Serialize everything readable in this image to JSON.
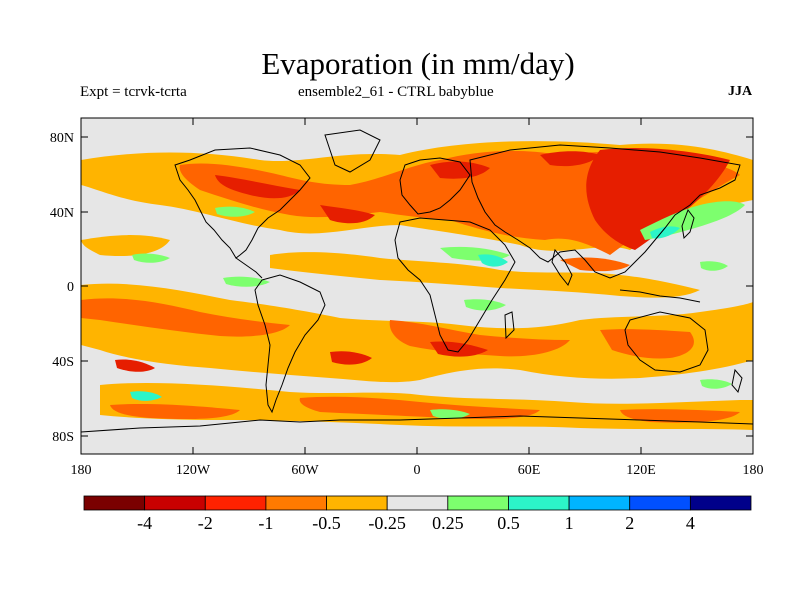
{
  "title": "Evaporation (in mm/day)",
  "subtitle_left": "Expt = tcrvk-tcrta",
  "subtitle_center": "ensemble2_61 - CTRL babyblue",
  "subtitle_right": "JJA",
  "y_ticks": [
    "80N",
    "40N",
    "0",
    "40S",
    "80S"
  ],
  "x_ticks": [
    "180",
    "120W",
    "60W",
    "0",
    "60E",
    "120E",
    "180"
  ],
  "colorbar": {
    "labels": [
      "-4",
      "-2",
      "-1",
      "-0.5",
      "-0.25",
      "0.25",
      "0.5",
      "1",
      "2",
      "4"
    ],
    "colors": [
      "#7a0000",
      "#c80000",
      "#ff2200",
      "#ff7a00",
      "#ffb400",
      "#e6e6e6",
      "#7dff6e",
      "#2cf5c8",
      "#00b4ff",
      "#0050ff",
      "#00008a"
    ]
  },
  "map_colors": {
    "land_background": "#e6e6e6",
    "neg_strong": "#e61e00",
    "neg_mid": "#ff6400",
    "neg_weak": "#ffb400",
    "pos_weak": "#7dff6e",
    "pos_mid": "#2cf5c8",
    "coast": "#000000"
  }
}
